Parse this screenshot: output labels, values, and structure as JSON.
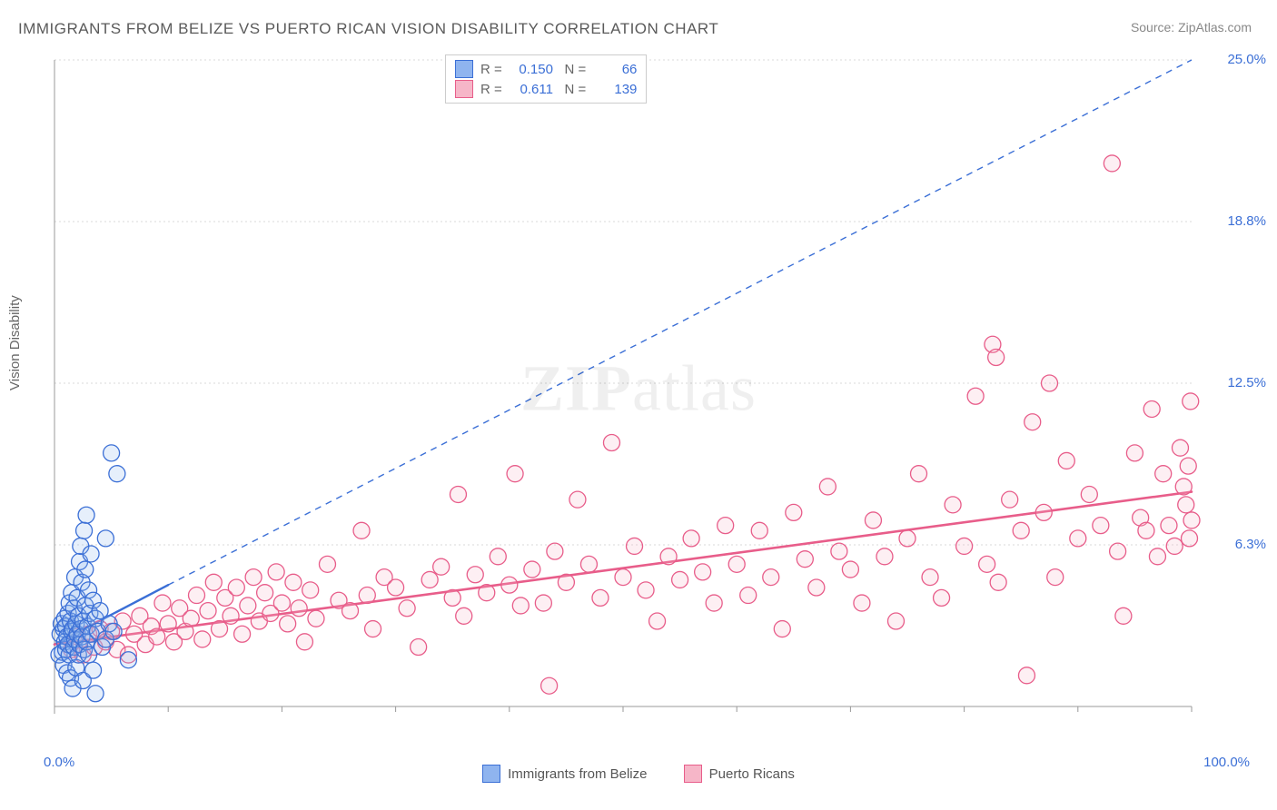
{
  "title": "IMMIGRANTS FROM BELIZE VS PUERTO RICAN VISION DISABILITY CORRELATION CHART",
  "source_prefix": "Source: ",
  "source_name": "ZipAtlas.com",
  "watermark_bold": "ZIP",
  "watermark_rest": "atlas",
  "ylabel": "Vision Disability",
  "chart": {
    "type": "scatter",
    "xlim": [
      0,
      100
    ],
    "ylim": [
      0,
      25
    ],
    "x_ticks": [
      0,
      10,
      20,
      30,
      40,
      50,
      60,
      70,
      80,
      90,
      100
    ],
    "y_gridlines": [
      6.25,
      12.5,
      18.75,
      25.0
    ],
    "y_tick_labels": [
      "6.3%",
      "12.5%",
      "18.8%",
      "25.0%"
    ],
    "x_origin_label": "0.0%",
    "x_max_label": "100.0%",
    "axis_label_color": "#3b6fd6",
    "grid_color": "#d8d8d8",
    "background_color": "#ffffff",
    "axis_color": "#999999",
    "marker_radius": 9,
    "marker_stroke_width": 1.3,
    "marker_fill_opacity": 0.22,
    "series": [
      {
        "name": "Immigrants from Belize",
        "color_stroke": "#3b6fd6",
        "color_fill": "#8fb4ef",
        "R": "0.150",
        "N": "66",
        "trend_solid": {
          "x1": 0,
          "y1": 2.4,
          "x2": 10,
          "y2": 4.7,
          "width": 2.4
        },
        "trend_dashed": {
          "x1": 10,
          "y1": 4.7,
          "x2": 100,
          "y2": 25.0,
          "dash": "7,6",
          "width": 1.4
        },
        "points": [
          [
            0.4,
            2.0
          ],
          [
            0.5,
            2.8
          ],
          [
            0.6,
            3.2
          ],
          [
            0.7,
            2.1
          ],
          [
            0.8,
            3.0
          ],
          [
            0.8,
            1.6
          ],
          [
            0.9,
            2.5
          ],
          [
            0.9,
            3.4
          ],
          [
            1.0,
            2.2
          ],
          [
            1.0,
            3.1
          ],
          [
            1.1,
            2.7
          ],
          [
            1.1,
            1.3
          ],
          [
            1.2,
            3.6
          ],
          [
            1.2,
            2.4
          ],
          [
            1.3,
            4.0
          ],
          [
            1.3,
            2.0
          ],
          [
            1.4,
            3.3
          ],
          [
            1.4,
            1.1
          ],
          [
            1.5,
            2.9
          ],
          [
            1.5,
            4.4
          ],
          [
            1.6,
            3.0
          ],
          [
            1.6,
            0.7
          ],
          [
            1.7,
            2.3
          ],
          [
            1.7,
            3.8
          ],
          [
            1.8,
            2.6
          ],
          [
            1.8,
            5.0
          ],
          [
            1.9,
            3.2
          ],
          [
            1.9,
            1.5
          ],
          [
            2.0,
            2.8
          ],
          [
            2.0,
            4.2
          ],
          [
            2.1,
            3.5
          ],
          [
            2.1,
            2.0
          ],
          [
            2.2,
            5.6
          ],
          [
            2.2,
            2.4
          ],
          [
            2.3,
            3.0
          ],
          [
            2.3,
            6.2
          ],
          [
            2.4,
            2.7
          ],
          [
            2.4,
            4.8
          ],
          [
            2.5,
            3.3
          ],
          [
            2.5,
            1.0
          ],
          [
            2.6,
            6.8
          ],
          [
            2.6,
            2.2
          ],
          [
            2.7,
            3.9
          ],
          [
            2.7,
            5.3
          ],
          [
            2.8,
            2.5
          ],
          [
            2.8,
            7.4
          ],
          [
            2.9,
            3.1
          ],
          [
            3.0,
            4.5
          ],
          [
            3.0,
            2.0
          ],
          [
            3.1,
            3.6
          ],
          [
            3.2,
            5.9
          ],
          [
            3.2,
            2.8
          ],
          [
            3.4,
            4.1
          ],
          [
            3.4,
            1.4
          ],
          [
            3.6,
            3.4
          ],
          [
            3.6,
            0.5
          ],
          [
            3.8,
            2.9
          ],
          [
            4.0,
            3.7
          ],
          [
            4.2,
            2.3
          ],
          [
            4.5,
            6.5
          ],
          [
            4.5,
            2.6
          ],
          [
            4.8,
            3.2
          ],
          [
            5.0,
            9.8
          ],
          [
            5.2,
            2.9
          ],
          [
            5.5,
            9.0
          ],
          [
            6.5,
            1.8
          ]
        ]
      },
      {
        "name": "Puerto Ricans",
        "color_stroke": "#e85d8a",
        "color_fill": "#f6b6c8",
        "R": "0.611",
        "N": "139",
        "trend_solid": {
          "x1": 0,
          "y1": 2.4,
          "x2": 100,
          "y2": 8.3,
          "width": 2.6
        },
        "points": [
          [
            1.5,
            2.2
          ],
          [
            2.0,
            2.7
          ],
          [
            2.5,
            2.0
          ],
          [
            3.0,
            2.8
          ],
          [
            3.5,
            2.3
          ],
          [
            4.0,
            3.0
          ],
          [
            4.5,
            2.5
          ],
          [
            5.0,
            2.9
          ],
          [
            5.5,
            2.2
          ],
          [
            6.0,
            3.3
          ],
          [
            6.5,
            2.0
          ],
          [
            7.0,
            2.8
          ],
          [
            7.5,
            3.5
          ],
          [
            8.0,
            2.4
          ],
          [
            8.5,
            3.1
          ],
          [
            9.0,
            2.7
          ],
          [
            9.5,
            4.0
          ],
          [
            10,
            3.2
          ],
          [
            10.5,
            2.5
          ],
          [
            11,
            3.8
          ],
          [
            11.5,
            2.9
          ],
          [
            12,
            3.4
          ],
          [
            12.5,
            4.3
          ],
          [
            13,
            2.6
          ],
          [
            13.5,
            3.7
          ],
          [
            14,
            4.8
          ],
          [
            14.5,
            3.0
          ],
          [
            15,
            4.2
          ],
          [
            15.5,
            3.5
          ],
          [
            16,
            4.6
          ],
          [
            16.5,
            2.8
          ],
          [
            17,
            3.9
          ],
          [
            17.5,
            5.0
          ],
          [
            18,
            3.3
          ],
          [
            18.5,
            4.4
          ],
          [
            19,
            3.6
          ],
          [
            19.5,
            5.2
          ],
          [
            20,
            4.0
          ],
          [
            20.5,
            3.2
          ],
          [
            21,
            4.8
          ],
          [
            21.5,
            3.8
          ],
          [
            22,
            2.5
          ],
          [
            22.5,
            4.5
          ],
          [
            23,
            3.4
          ],
          [
            24,
            5.5
          ],
          [
            25,
            4.1
          ],
          [
            26,
            3.7
          ],
          [
            27,
            6.8
          ],
          [
            27.5,
            4.3
          ],
          [
            28,
            3.0
          ],
          [
            29,
            5.0
          ],
          [
            30,
            4.6
          ],
          [
            31,
            3.8
          ],
          [
            32,
            2.3
          ],
          [
            33,
            4.9
          ],
          [
            34,
            5.4
          ],
          [
            35,
            4.2
          ],
          [
            35.5,
            8.2
          ],
          [
            36,
            3.5
          ],
          [
            37,
            5.1
          ],
          [
            38,
            4.4
          ],
          [
            39,
            5.8
          ],
          [
            40,
            4.7
          ],
          [
            40.5,
            9.0
          ],
          [
            41,
            3.9
          ],
          [
            42,
            5.3
          ],
          [
            43,
            4.0
          ],
          [
            43.5,
            0.8
          ],
          [
            44,
            6.0
          ],
          [
            45,
            4.8
          ],
          [
            46,
            8.0
          ],
          [
            47,
            5.5
          ],
          [
            48,
            4.2
          ],
          [
            49,
            10.2
          ],
          [
            50,
            5.0
          ],
          [
            51,
            6.2
          ],
          [
            52,
            4.5
          ],
          [
            53,
            3.3
          ],
          [
            54,
            5.8
          ],
          [
            55,
            4.9
          ],
          [
            56,
            6.5
          ],
          [
            57,
            5.2
          ],
          [
            58,
            4.0
          ],
          [
            59,
            7.0
          ],
          [
            60,
            5.5
          ],
          [
            61,
            4.3
          ],
          [
            62,
            6.8
          ],
          [
            63,
            5.0
          ],
          [
            64,
            3.0
          ],
          [
            65,
            7.5
          ],
          [
            66,
            5.7
          ],
          [
            67,
            4.6
          ],
          [
            68,
            8.5
          ],
          [
            69,
            6.0
          ],
          [
            70,
            5.3
          ],
          [
            71,
            4.0
          ],
          [
            72,
            7.2
          ],
          [
            73,
            5.8
          ],
          [
            74,
            3.3
          ],
          [
            75,
            6.5
          ],
          [
            76,
            9.0
          ],
          [
            77,
            5.0
          ],
          [
            78,
            4.2
          ],
          [
            79,
            7.8
          ],
          [
            80,
            6.2
          ],
          [
            81,
            12.0
          ],
          [
            82,
            5.5
          ],
          [
            82.5,
            14.0
          ],
          [
            82.8,
            13.5
          ],
          [
            83,
            4.8
          ],
          [
            84,
            8.0
          ],
          [
            85,
            6.8
          ],
          [
            85.5,
            1.2
          ],
          [
            86,
            11.0
          ],
          [
            87,
            7.5
          ],
          [
            87.5,
            12.5
          ],
          [
            88,
            5.0
          ],
          [
            89,
            9.5
          ],
          [
            90,
            6.5
          ],
          [
            91,
            8.2
          ],
          [
            92,
            7.0
          ],
          [
            93,
            21.0
          ],
          [
            93.5,
            6.0
          ],
          [
            94,
            3.5
          ],
          [
            95,
            9.8
          ],
          [
            95.5,
            7.3
          ],
          [
            96,
            6.8
          ],
          [
            96.5,
            11.5
          ],
          [
            97,
            5.8
          ],
          [
            97.5,
            9.0
          ],
          [
            98,
            7.0
          ],
          [
            98.5,
            6.2
          ],
          [
            99,
            10.0
          ],
          [
            99.3,
            8.5
          ],
          [
            99.5,
            7.8
          ],
          [
            99.7,
            9.3
          ],
          [
            99.8,
            6.5
          ],
          [
            99.9,
            11.8
          ],
          [
            100,
            7.2
          ]
        ]
      }
    ]
  },
  "legend_top": {
    "rows": [
      {
        "swatch_fill": "#8fb4ef",
        "swatch_stroke": "#3b6fd6",
        "R_label": "R =",
        "R": "0.150",
        "N_label": "N =",
        "N": "66"
      },
      {
        "swatch_fill": "#f6b6c8",
        "swatch_stroke": "#e85d8a",
        "R_label": "R =",
        "R": "0.611",
        "N_label": "N =",
        "N": "139"
      }
    ]
  },
  "legend_bottom": {
    "items": [
      {
        "swatch_fill": "#8fb4ef",
        "swatch_stroke": "#3b6fd6",
        "label": "Immigrants from Belize"
      },
      {
        "swatch_fill": "#f6b6c8",
        "swatch_stroke": "#e85d8a",
        "label": "Puerto Ricans"
      }
    ]
  }
}
